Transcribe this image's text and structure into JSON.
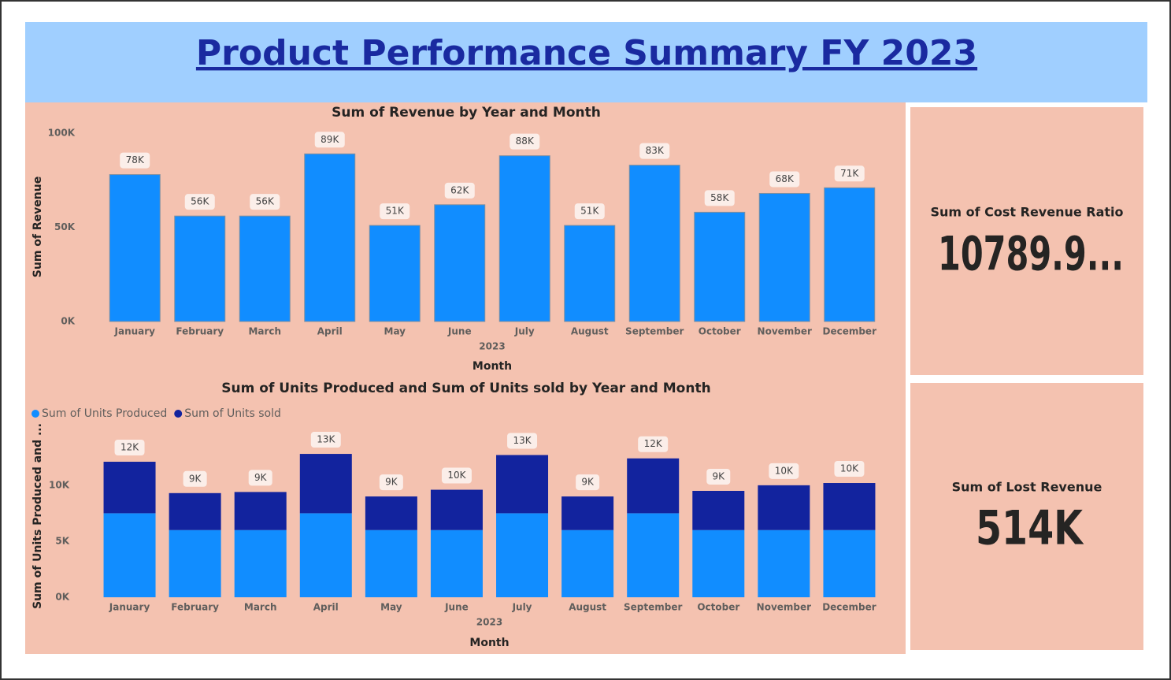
{
  "header": {
    "title": "Product Performance Summary FY 2023"
  },
  "chart_data": [
    {
      "type": "bar",
      "title": "Sum of Revenue by Year and Month",
      "y_label": "Sum of Revenue",
      "x_label": "Month",
      "x_group_label": "2023",
      "categories": [
        "January",
        "February",
        "March",
        "April",
        "May",
        "June",
        "July",
        "August",
        "September",
        "October",
        "November",
        "December"
      ],
      "series": [
        {
          "name": "Sum of Revenue",
          "color": "#118dff",
          "values": [
            78000,
            56000,
            56000,
            89000,
            51000,
            62000,
            88000,
            51000,
            83000,
            58000,
            68000,
            71000
          ],
          "value_labels": [
            "78K",
            "56K",
            "56K",
            "89K",
            "51K",
            "62K",
            "88K",
            "51K",
            "83K",
            "58K",
            "68K",
            "71K"
          ]
        }
      ],
      "ylim": [
        0,
        100000
      ],
      "yticks": [
        {
          "value": 0,
          "label": "0K"
        },
        {
          "value": 50000,
          "label": "50K"
        },
        {
          "value": 100000,
          "label": "100K"
        }
      ]
    },
    {
      "type": "bar",
      "stacked": true,
      "title": "Sum of Units Produced and Sum of Units sold by Year and Month",
      "y_label": "Sum of Units Produced and ...",
      "x_label": "Month",
      "x_group_label": "2023",
      "legend": "top-left",
      "categories": [
        "January",
        "February",
        "March",
        "April",
        "May",
        "June",
        "July",
        "August",
        "September",
        "October",
        "November",
        "December"
      ],
      "series": [
        {
          "name": "Sum of Units Produced",
          "color": "#118dff",
          "values": [
            7500,
            6000,
            6000,
            7500,
            6000,
            6000,
            7500,
            6000,
            7500,
            6000,
            6000,
            6000
          ]
        },
        {
          "name": "Sum of Units sold",
          "color": "#12239e",
          "values": [
            4600,
            3300,
            3400,
            5300,
            3000,
            3600,
            5200,
            3000,
            4900,
            3500,
            4000,
            4200
          ]
        }
      ],
      "total_labels": [
        "12K",
        "9K",
        "9K",
        "13K",
        "9K",
        "10K",
        "13K",
        "9K",
        "12K",
        "9K",
        "10K",
        "10K"
      ],
      "ylim": [
        0,
        14000
      ],
      "yticks": [
        {
          "value": 0,
          "label": "0K"
        },
        {
          "value": 5000,
          "label": "5K"
        },
        {
          "value": 10000,
          "label": "10K"
        }
      ]
    }
  ],
  "cards": [
    {
      "label": "Sum of Cost Revenue Ratio",
      "value": "10789.9..."
    },
    {
      "label": "Sum of Lost Revenue",
      "value": "514K"
    }
  ]
}
